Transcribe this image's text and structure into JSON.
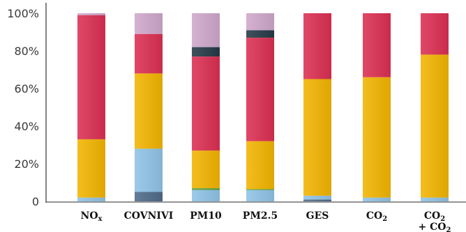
{
  "chart_data": {
    "type": "stacked-bar",
    "ylim": [
      0,
      100
    ],
    "y_ticks": [
      {
        "value": 0,
        "label": "0"
      },
      {
        "value": 20,
        "label": "20%"
      },
      {
        "value": 40,
        "label": "40%"
      },
      {
        "value": 60,
        "label": "60%"
      },
      {
        "value": 80,
        "label": "80%"
      },
      {
        "value": 100,
        "label": "100%"
      }
    ],
    "grid": false,
    "categories": [
      {
        "label": "NOx",
        "parts": [
          {
            "t": "NO",
            "sub": false
          },
          {
            "t": "x",
            "sub": true
          }
        ]
      },
      {
        "label": "COVNIVI",
        "parts": [
          {
            "t": "COVNIVI",
            "sub": false
          }
        ]
      },
      {
        "label": "PM10",
        "parts": [
          {
            "t": "PM10",
            "sub": false
          }
        ]
      },
      {
        "label": "PM2.5",
        "parts": [
          {
            "t": "PM2.5",
            "sub": false
          }
        ]
      },
      {
        "label": "GES",
        "parts": [
          {
            "t": "GES",
            "sub": false
          }
        ]
      },
      {
        "label": "CO2",
        "parts": [
          {
            "t": "CO",
            "sub": false
          },
          {
            "t": "2",
            "sub": true
          }
        ]
      },
      {
        "label": "CO2 + CO2",
        "parts": [
          {
            "t": "CO",
            "sub": false
          },
          {
            "t": "2",
            "sub": true
          }
        ],
        "line2": [
          {
            "t": "+ CO",
            "sub": false
          },
          {
            "t": "2",
            "sub": true
          }
        ]
      }
    ],
    "series": [
      {
        "color": "#4e6a8a",
        "values": [
          0,
          5,
          0,
          0,
          1,
          0,
          0
        ]
      },
      {
        "color": "#8fc3e6",
        "values": [
          2,
          23,
          6,
          6,
          2,
          2,
          2
        ]
      },
      {
        "color": "#5aa03c",
        "values": [
          0,
          0,
          1,
          0.5,
          0,
          0,
          0
        ]
      },
      {
        "color": "#f2b400",
        "values": [
          31,
          40,
          20,
          25.5,
          62,
          64,
          76
        ]
      },
      {
        "color": "#dc2f52",
        "values": [
          66,
          21,
          50,
          55,
          35,
          34,
          22
        ]
      },
      {
        "color": "#253a47",
        "values": [
          0,
          0,
          5,
          4,
          0,
          0,
          0
        ]
      },
      {
        "color": "#cfa7cb",
        "values": [
          1,
          11,
          18,
          9,
          0,
          0,
          0
        ]
      }
    ]
  }
}
